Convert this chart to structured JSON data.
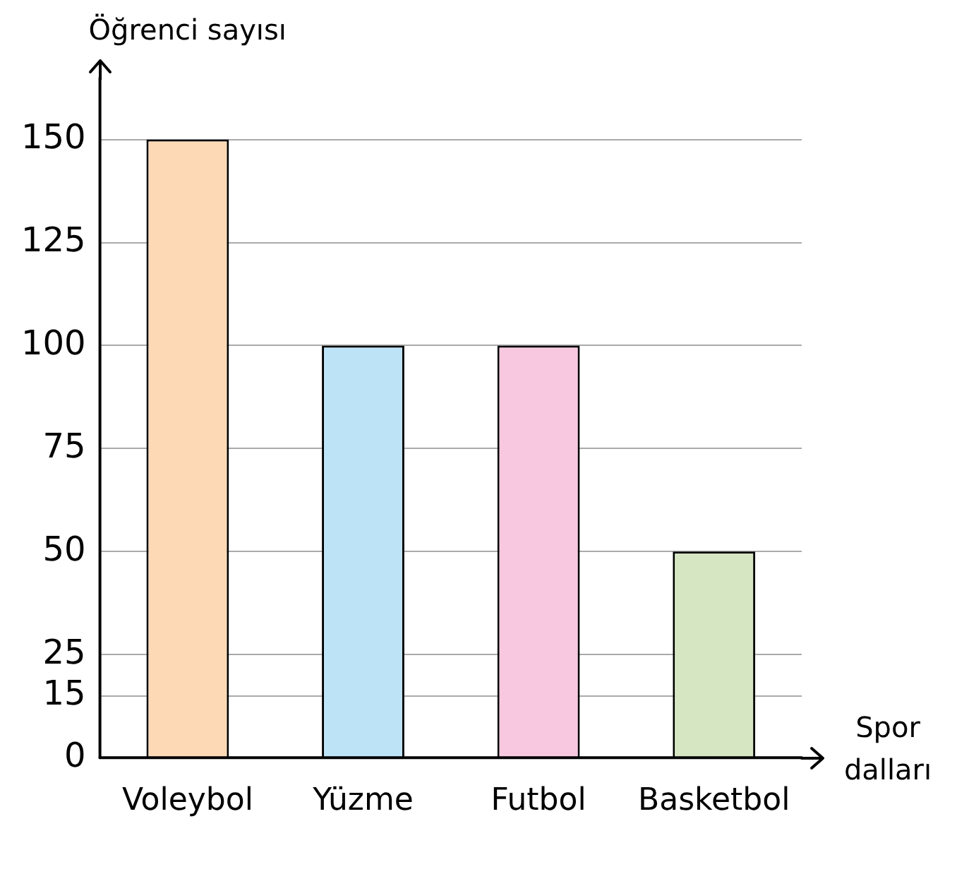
{
  "chart_data": {
    "type": "bar",
    "ylabel": "Öğrenci sayısı",
    "xlabel": "Spor dalları",
    "categories": [
      "Voleybol",
      "Yüzme",
      "Futbol",
      "Basketbol"
    ],
    "values": [
      150,
      100,
      100,
      50
    ],
    "colors": [
      "#fdd9b5",
      "#bde3f7",
      "#f8c8e0",
      "#d6e6c3"
    ],
    "ylim": [
      0,
      165
    ],
    "yticks": [
      0,
      15,
      25,
      50,
      75,
      100,
      125,
      150
    ],
    "grid": "y",
    "legend": false
  }
}
